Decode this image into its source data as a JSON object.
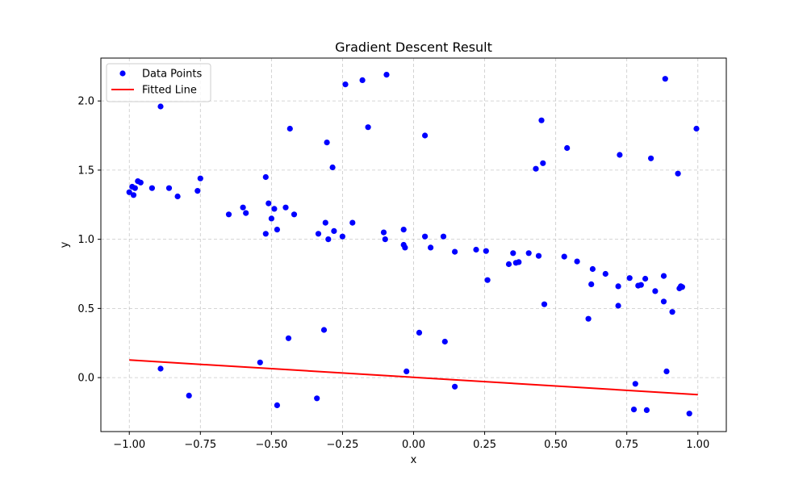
{
  "chart_data": {
    "type": "scatter",
    "title": "Gradient Descent Result",
    "xlabel": "x",
    "ylabel": "y",
    "xlim": [
      -1.1,
      1.1
    ],
    "ylim": [
      -0.39,
      2.31
    ],
    "xticks": [
      -1.0,
      -0.75,
      -0.5,
      -0.25,
      0.0,
      0.25,
      0.5,
      0.75,
      1.0
    ],
    "xtick_labels": [
      "−1.00",
      "−0.75",
      "−0.50",
      "−0.25",
      "0.00",
      "0.25",
      "0.50",
      "0.75",
      "1.00"
    ],
    "yticks": [
      0.0,
      0.5,
      1.0,
      1.5,
      2.0
    ],
    "ytick_labels": [
      "0.0",
      "0.5",
      "1.0",
      "1.5",
      "2.0"
    ],
    "grid": true,
    "legend_position": "top-left",
    "series": [
      {
        "name": "Data Points",
        "kind": "scatter",
        "color": "#0000ff",
        "points": [
          [
            -1.0,
            1.34
          ],
          [
            -0.99,
            1.38
          ],
          [
            -0.985,
            1.32
          ],
          [
            -0.98,
            1.37
          ],
          [
            -0.97,
            1.42
          ],
          [
            -0.96,
            1.41
          ],
          [
            -0.92,
            1.37
          ],
          [
            -0.89,
            1.96
          ],
          [
            -0.89,
            0.065
          ],
          [
            -0.86,
            1.37
          ],
          [
            -0.83,
            1.31
          ],
          [
            -0.79,
            -0.13
          ],
          [
            -0.76,
            1.35
          ],
          [
            -0.75,
            1.44
          ],
          [
            -0.65,
            1.18
          ],
          [
            -0.6,
            1.23
          ],
          [
            -0.59,
            1.19
          ],
          [
            -0.54,
            0.11
          ],
          [
            -0.52,
            1.45
          ],
          [
            -0.52,
            1.04
          ],
          [
            -0.51,
            1.26
          ],
          [
            -0.5,
            1.15
          ],
          [
            -0.49,
            1.22
          ],
          [
            -0.48,
            1.07
          ],
          [
            -0.48,
            -0.2
          ],
          [
            -0.45,
            1.23
          ],
          [
            -0.44,
            0.285
          ],
          [
            -0.435,
            1.8
          ],
          [
            -0.42,
            1.18
          ],
          [
            -0.335,
            1.04
          ],
          [
            -0.34,
            -0.15
          ],
          [
            -0.315,
            0.345
          ],
          [
            -0.31,
            1.12
          ],
          [
            -0.305,
            1.7
          ],
          [
            -0.3,
            1.0
          ],
          [
            -0.285,
            1.52
          ],
          [
            -0.28,
            1.06
          ],
          [
            -0.25,
            1.02
          ],
          [
            -0.24,
            2.12
          ],
          [
            -0.215,
            1.12
          ],
          [
            -0.18,
            2.15
          ],
          [
            -0.16,
            1.81
          ],
          [
            -0.105,
            1.05
          ],
          [
            -0.1,
            1.0
          ],
          [
            -0.095,
            2.19
          ],
          [
            -0.035,
            1.07
          ],
          [
            -0.035,
            0.96
          ],
          [
            -0.03,
            0.94
          ],
          [
            -0.025,
            0.045
          ],
          [
            0.02,
            0.325
          ],
          [
            0.04,
            1.75
          ],
          [
            0.04,
            1.02
          ],
          [
            0.06,
            0.94
          ],
          [
            0.105,
            1.02
          ],
          [
            0.11,
            0.26
          ],
          [
            0.145,
            0.91
          ],
          [
            0.145,
            -0.065
          ],
          [
            0.22,
            0.925
          ],
          [
            0.255,
            0.915
          ],
          [
            0.26,
            0.705
          ],
          [
            0.335,
            0.82
          ],
          [
            0.35,
            0.9
          ],
          [
            0.36,
            0.83
          ],
          [
            0.37,
            0.835
          ],
          [
            0.405,
            0.9
          ],
          [
            0.43,
            1.51
          ],
          [
            0.44,
            0.88
          ],
          [
            0.45,
            1.86
          ],
          [
            0.455,
            1.55
          ],
          [
            0.46,
            0.53
          ],
          [
            0.53,
            0.875
          ],
          [
            0.54,
            1.66
          ],
          [
            0.575,
            0.84
          ],
          [
            0.615,
            0.425
          ],
          [
            0.625,
            0.675
          ],
          [
            0.63,
            0.785
          ],
          [
            0.675,
            0.75
          ],
          [
            0.72,
            0.66
          ],
          [
            0.72,
            0.52
          ],
          [
            0.725,
            1.61
          ],
          [
            0.76,
            0.72
          ],
          [
            0.775,
            -0.23
          ],
          [
            0.78,
            -0.045
          ],
          [
            0.79,
            0.665
          ],
          [
            0.8,
            0.67
          ],
          [
            0.815,
            0.715
          ],
          [
            0.82,
            -0.235
          ],
          [
            0.835,
            1.585
          ],
          [
            0.85,
            0.625
          ],
          [
            0.88,
            0.55
          ],
          [
            0.88,
            0.735
          ],
          [
            0.885,
            2.16
          ],
          [
            0.89,
            0.045
          ],
          [
            0.91,
            0.475
          ],
          [
            0.93,
            1.475
          ],
          [
            0.935,
            0.645
          ],
          [
            0.94,
            0.66
          ],
          [
            0.945,
            0.655
          ],
          [
            0.97,
            -0.26
          ],
          [
            0.995,
            1.8
          ]
        ]
      },
      {
        "name": "Fitted Line",
        "kind": "line",
        "color": "#ff0000",
        "points": [
          [
            -1.0,
            0.127
          ],
          [
            1.0,
            -0.123
          ]
        ]
      }
    ]
  }
}
